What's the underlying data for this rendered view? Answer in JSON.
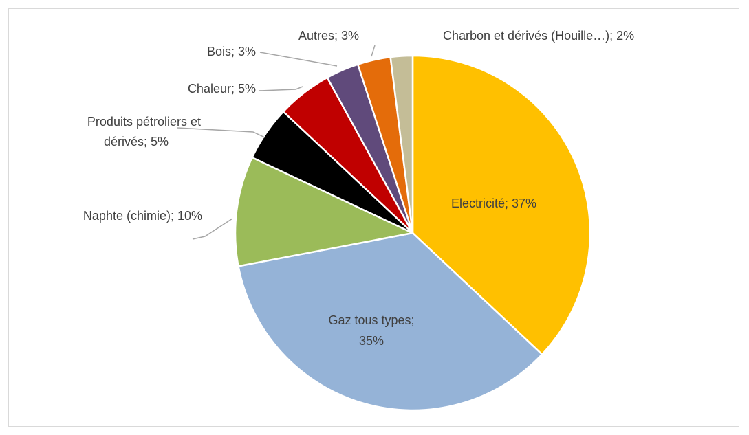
{
  "chart_data": {
    "type": "pie",
    "title": "",
    "legend": "none",
    "slices": [
      {
        "label": "Electricité",
        "value": 37,
        "color": "#FFC000",
        "display": "Electricité; 37%"
      },
      {
        "label": "Gaz tous types",
        "value": 35,
        "color": "#95B3D7",
        "display_line1": "Gaz tous types;",
        "display_line2": "35%"
      },
      {
        "label": "Naphte (chimie)",
        "value": 10,
        "color": "#9BBB59",
        "display": "Naphte (chimie); 10%"
      },
      {
        "label": "Produits pétroliers et dérivés",
        "value": 5,
        "color": "#000000",
        "display_line1": "Produits pétroliers et",
        "display_line2": "dérivés; 5%"
      },
      {
        "label": "Chaleur",
        "value": 5,
        "color": "#C00000",
        "display": "Chaleur; 5%"
      },
      {
        "label": "Bois",
        "value": 3,
        "color": "#604A7B",
        "display": "Bois; 3%"
      },
      {
        "label": "Autres",
        "value": 3,
        "color": "#E46C0A",
        "display": "Autres; 3%"
      },
      {
        "label": "Charbon et dérivés (Houille…)",
        "value": 2,
        "color": "#C4BD97",
        "display": "Charbon et dérivés (Houille…); 2%"
      }
    ]
  }
}
